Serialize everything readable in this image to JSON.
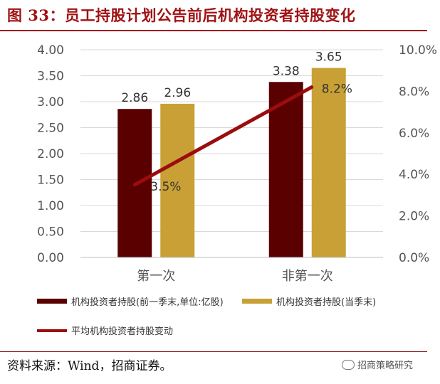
{
  "figure": {
    "title": "图 33：员工持股计划公告前后机构投资者持股变化",
    "source": "资料来源：Wind，招商证券。",
    "watermark": "招商策略研究"
  },
  "colors": {
    "bar1": "#5a0000",
    "bar2": "#c9a035",
    "line": "#9b0d0d",
    "title": "#a01214"
  },
  "chart_data": {
    "type": "bar",
    "categories": [
      "第一次",
      "非第一次"
    ],
    "series": [
      {
        "name": "机构投资者持股(前一季末,单位:亿股)",
        "values": [
          2.86,
          3.38
        ],
        "color": "#5a0000",
        "axis": "left"
      },
      {
        "name": "机构投资者持股(当季末)",
        "values": [
          2.96,
          3.65
        ],
        "color": "#c9a035",
        "axis": "left"
      },
      {
        "name": "平均机构投资者持股变动",
        "type": "line",
        "values": [
          3.5,
          8.2
        ],
        "labels": [
          "3.5%",
          "8.2%"
        ],
        "color": "#9b0d0d",
        "axis": "right"
      }
    ],
    "ylim": [
      0,
      4
    ],
    "yticks": [
      "0.00",
      "0.50",
      "1.00",
      "1.50",
      "2.00",
      "2.50",
      "3.00",
      "3.50",
      "4.00"
    ],
    "y2lim": [
      0,
      10
    ],
    "y2ticks": [
      "0.0%",
      "2.0%",
      "4.0%",
      "6.0%",
      "8.0%",
      "10.0%"
    ],
    "bar_labels": [
      [
        "2.86",
        "3.38"
      ],
      [
        "2.96",
        "3.65"
      ]
    ],
    "legend_position": "bottom",
    "grid": true
  }
}
